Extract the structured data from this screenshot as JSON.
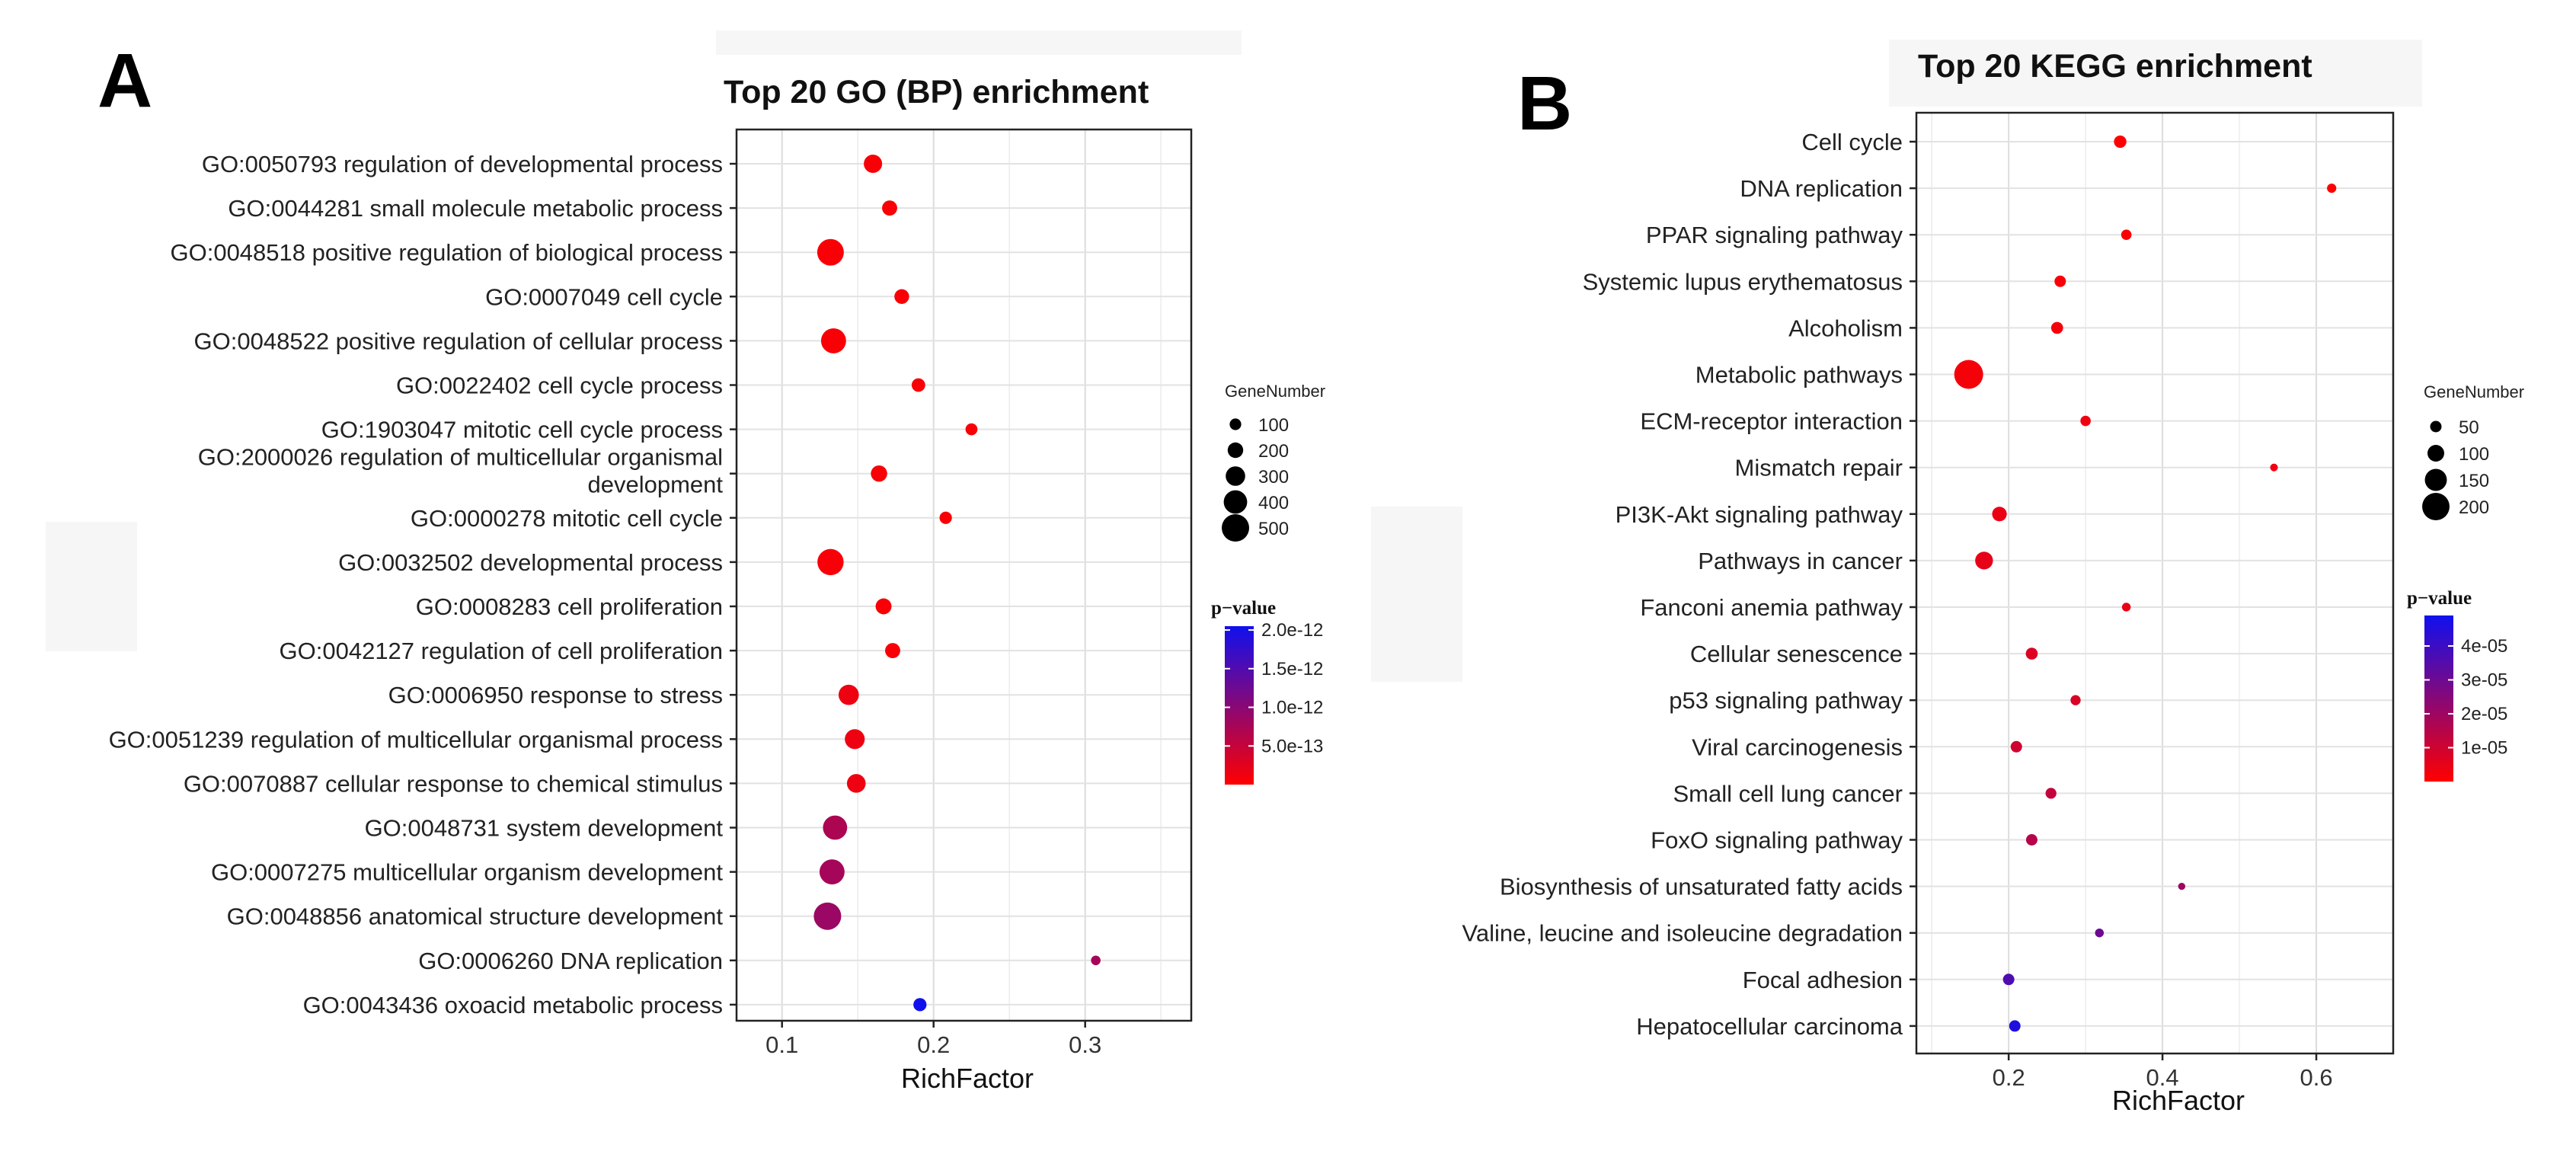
{
  "chart_data": [
    {
      "type": "scatter",
      "panel_label": "A",
      "title": "Top 20 GO (BP) enrichment",
      "xlabel": "RichFactor",
      "xlim": [
        0.07,
        0.37
      ],
      "xticks": [
        0.1,
        0.2,
        0.3
      ],
      "size_legend_title": "GeneNumber",
      "size_legend_values": [
        100,
        200,
        300,
        400,
        500
      ],
      "color_legend_title": "p−value",
      "color_legend_ticks": [
        "2.0e-12",
        "1.5e-12",
        "1.0e-12",
        "5.0e-13"
      ],
      "color_low": "#ff0000",
      "color_high": "#1010ee",
      "grid": true,
      "points": [
        {
          "term": "GO:0050793 regulation of developmental process",
          "rich_factor": 0.16,
          "gene_number": 270,
          "p_value": 5e-14
        },
        {
          "term": "GO:0044281 small molecule metabolic process",
          "rich_factor": 0.171,
          "gene_number": 190,
          "p_value": 5e-14
        },
        {
          "term": "GO:0048518 positive regulation of biological process",
          "rich_factor": 0.132,
          "gene_number": 480,
          "p_value": 5e-14
        },
        {
          "term": "GO:0007049 cell cycle",
          "rich_factor": 0.179,
          "gene_number": 180,
          "p_value": 5e-14
        },
        {
          "term": "GO:0048522 positive regulation of cellular process",
          "rich_factor": 0.134,
          "gene_number": 440,
          "p_value": 5e-14
        },
        {
          "term": "GO:0022402 cell cycle process",
          "rich_factor": 0.19,
          "gene_number": 150,
          "p_value": 5e-14
        },
        {
          "term": "GO:1903047 mitotic cell cycle process",
          "rich_factor": 0.225,
          "gene_number": 110,
          "p_value": 5e-14
        },
        {
          "term": "GO:2000026 regulation of multicellular organismal development",
          "rich_factor": 0.164,
          "gene_number": 220,
          "p_value": 5e-14
        },
        {
          "term": "GO:0000278 mitotic cell cycle",
          "rich_factor": 0.208,
          "gene_number": 120,
          "p_value": 5e-14
        },
        {
          "term": "GO:0032502 developmental process",
          "rich_factor": 0.132,
          "gene_number": 470,
          "p_value": 6e-14
        },
        {
          "term": "GO:0008283 cell proliferation",
          "rich_factor": 0.167,
          "gene_number": 210,
          "p_value": 5e-14
        },
        {
          "term": "GO:0042127 regulation of cell proliferation",
          "rich_factor": 0.173,
          "gene_number": 190,
          "p_value": 5e-14
        },
        {
          "term": "GO:0006950 response to stress",
          "rich_factor": 0.144,
          "gene_number": 320,
          "p_value": 1.5e-13
        },
        {
          "term": "GO:0051239 regulation of multicellular organismal process",
          "rich_factor": 0.148,
          "gene_number": 310,
          "p_value": 1.5e-13
        },
        {
          "term": "GO:0070887 cellular response to chemical stimulus",
          "rich_factor": 0.149,
          "gene_number": 280,
          "p_value": 1.5e-13
        },
        {
          "term": "GO:0048731 system development",
          "rich_factor": 0.135,
          "gene_number": 420,
          "p_value": 7.5e-13
        },
        {
          "term": "GO:0007275 multicellular organism development",
          "rich_factor": 0.133,
          "gene_number": 440,
          "p_value": 8e-13
        },
        {
          "term": "GO:0048856 anatomical structure development",
          "rich_factor": 0.13,
          "gene_number": 500,
          "p_value": 9e-13
        },
        {
          "term": "GO:0006260 DNA replication",
          "rich_factor": 0.307,
          "gene_number": 50,
          "p_value": 8e-13
        },
        {
          "term": "GO:0043436 oxoacid metabolic process",
          "rich_factor": 0.191,
          "gene_number": 140,
          "p_value": 2.15e-12
        }
      ]
    },
    {
      "type": "scatter",
      "panel_label": "B",
      "title": "Top 20 KEGG enrichment",
      "xlabel": "RichFactor",
      "xlim": [
        0.08,
        0.7
      ],
      "xticks": [
        0.2,
        0.4,
        0.6
      ],
      "size_legend_title": "GeneNumber",
      "size_legend_values": [
        50,
        100,
        150,
        200
      ],
      "color_legend_title": "p−value",
      "color_legend_ticks": [
        "4e-05",
        "3e-05",
        "2e-05",
        "1e-05"
      ],
      "color_low": "#ff0000",
      "color_high": "#1010ee",
      "grid": true,
      "points": [
        {
          "term": "Cell cycle",
          "rich_factor": 0.345,
          "gene_number": 60,
          "p_value": 1e-07
        },
        {
          "term": "DNA replication",
          "rich_factor": 0.62,
          "gene_number": 30,
          "p_value": 1e-07
        },
        {
          "term": "PPAR signaling pathway",
          "rich_factor": 0.353,
          "gene_number": 40,
          "p_value": 1e-06
        },
        {
          "term": "Systemic lupus erythematosus",
          "rich_factor": 0.267,
          "gene_number": 50,
          "p_value": 1.5e-06
        },
        {
          "term": "Alcoholism",
          "rich_factor": 0.263,
          "gene_number": 55,
          "p_value": 2e-06
        },
        {
          "term": "Metabolic pathways",
          "rich_factor": 0.148,
          "gene_number": 215,
          "p_value": 2e-06
        },
        {
          "term": "ECM-receptor interaction",
          "rich_factor": 0.3,
          "gene_number": 40,
          "p_value": 3e-06
        },
        {
          "term": "Mismatch repair",
          "rich_factor": 0.545,
          "gene_number": 15,
          "p_value": 3e-06
        },
        {
          "term": "PI3K-Akt signaling pathway",
          "rich_factor": 0.188,
          "gene_number": 80,
          "p_value": 4e-06
        },
        {
          "term": "Pathways in cancer",
          "rich_factor": 0.168,
          "gene_number": 110,
          "p_value": 5e-06
        },
        {
          "term": "Fanconi anemia pathway",
          "rich_factor": 0.353,
          "gene_number": 25,
          "p_value": 5e-06
        },
        {
          "term": "Cellular senescence",
          "rich_factor": 0.23,
          "gene_number": 55,
          "p_value": 7e-06
        },
        {
          "term": "p53 signaling pathway",
          "rich_factor": 0.287,
          "gene_number": 38,
          "p_value": 8e-06
        },
        {
          "term": "Viral carcinogenesis",
          "rich_factor": 0.21,
          "gene_number": 50,
          "p_value": 1e-05
        },
        {
          "term": "Small cell lung cancer",
          "rich_factor": 0.255,
          "gene_number": 45,
          "p_value": 1.2e-05
        },
        {
          "term": "FoxO signaling pathway",
          "rich_factor": 0.23,
          "gene_number": 50,
          "p_value": 1.5e-05
        },
        {
          "term": "Biosynthesis of unsaturated fatty acids",
          "rich_factor": 0.425,
          "gene_number": 10,
          "p_value": 2e-05
        },
        {
          "term": "Valine, leucine and isoleucine degradation",
          "rich_factor": 0.318,
          "gene_number": 25,
          "p_value": 3e-05
        },
        {
          "term": "Focal adhesion",
          "rich_factor": 0.2,
          "gene_number": 50,
          "p_value": 3.6e-05
        },
        {
          "term": "Hepatocellular carcinoma",
          "rich_factor": 0.208,
          "gene_number": 50,
          "p_value": 4.6e-05
        }
      ]
    }
  ]
}
